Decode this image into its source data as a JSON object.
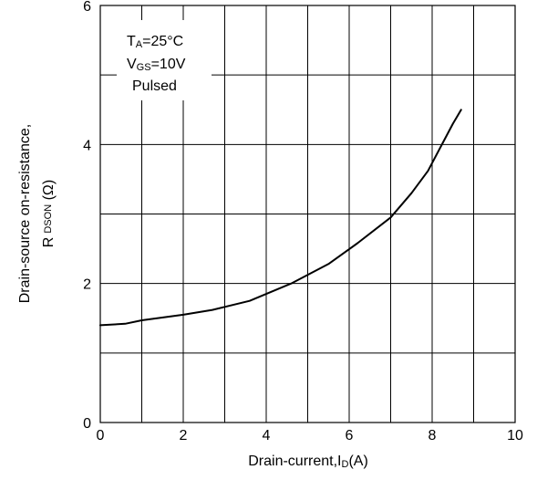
{
  "chart_data": {
    "type": "line",
    "xlabel": {
      "main": "Drain-current,I",
      "sub": "D",
      "unit": "(A)"
    },
    "ylabel": {
      "line1": "Drain-source on-resistance,",
      "line2_main": "R",
      "line2_sub": "DSON",
      "line2_unit": " (Ω)"
    },
    "xlim": [
      0,
      10
    ],
    "ylim": [
      0,
      6
    ],
    "x_ticks": [
      0,
      2,
      4,
      6,
      8,
      10
    ],
    "y_ticks": [
      0,
      2,
      4,
      6
    ],
    "x_grid_step": 1,
    "y_grid_step": 1,
    "grid": true,
    "annotation": {
      "line1_main": "T",
      "line1_sub": "A",
      "line1_rest": "=25°C",
      "line2_main": "V",
      "line2_sub": "GS",
      "line2_rest": "=10V",
      "line3": "Pulsed"
    },
    "series": [
      {
        "x": [
          0,
          0.6,
          1.0,
          2.0,
          2.7,
          3.6,
          4.6,
          5.5,
          6.2,
          7.0,
          7.5,
          7.9,
          8.2,
          8.5,
          8.7
        ],
        "y": [
          1.4,
          1.42,
          1.47,
          1.55,
          1.62,
          1.75,
          2.0,
          2.28,
          2.58,
          2.95,
          3.3,
          3.62,
          3.96,
          4.3,
          4.5
        ]
      }
    ]
  }
}
